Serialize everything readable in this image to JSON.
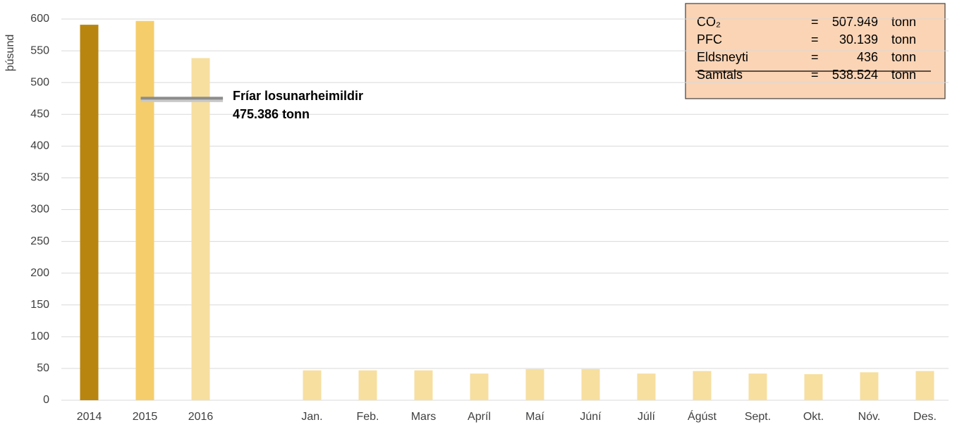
{
  "chart_data": {
    "type": "bar",
    "y_label": "þúsund",
    "categories": [
      "2014",
      "2015",
      "2016",
      null,
      "Jan.",
      "Feb.",
      "Mars",
      "Apríl",
      "Maí",
      "Júní",
      "Júlí",
      "Ágúst",
      "Sept.",
      "Okt.",
      "Nóv.",
      "Des."
    ],
    "values": [
      591,
      597,
      538.524,
      null,
      47,
      47,
      47,
      42,
      49,
      49,
      42,
      46,
      42,
      41,
      44,
      46
    ],
    "colors": [
      "#b8860f",
      "#f5ce6b",
      "#f7dfa0",
      null,
      "#f7dfa0",
      "#f7dfa0",
      "#f7dfa0",
      "#f7dfa0",
      "#f7dfa0",
      "#f7dfa0",
      "#f7dfa0",
      "#f7dfa0",
      "#f7dfa0",
      "#f7dfa0",
      "#f7dfa0",
      "#f7dfa0"
    ],
    "ylim": [
      0,
      600
    ],
    "yticks": [
      0,
      50,
      100,
      150,
      200,
      250,
      300,
      350,
      400,
      450,
      500,
      550,
      600
    ],
    "grid": true,
    "annotation": {
      "text": "Fríar losunarheimildir",
      "value": 475.386,
      "value_label": "475.386 tonn"
    },
    "box": {
      "rows": [
        [
          "CO₂",
          "=",
          "507.949",
          "tonn"
        ],
        [
          "PFC",
          "=",
          "30.139",
          "tonn"
        ],
        [
          "Eldsneyti",
          "=",
          "436",
          "tonn"
        ],
        [
          "Samtals",
          "=",
          "538.524",
          "tonn"
        ]
      ]
    }
  }
}
